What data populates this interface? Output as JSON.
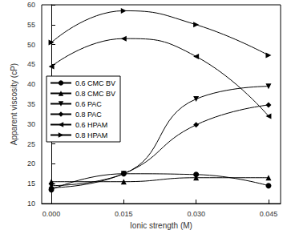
{
  "chart_data": {
    "type": "line",
    "x_label": "Ionic strength (M)",
    "y_label": "Apparent viscosity (cP)",
    "x": [
      0.0,
      0.015,
      0.03,
      0.045
    ],
    "xlim": [
      -0.002,
      0.0475
    ],
    "xticks": [
      {
        "value": 0,
        "label": "0.000"
      },
      {
        "value": 0.015,
        "label": "0.015"
      },
      {
        "value": 0.03,
        "label": "0.030"
      },
      {
        "value": 0.045,
        "label": "0.045"
      }
    ],
    "ylim": [
      10,
      60
    ],
    "yticks": [
      10,
      15,
      20,
      25,
      30,
      35,
      40,
      45,
      50,
      55,
      60
    ],
    "grid": false,
    "legend": "left",
    "series": [
      {
        "name": "0.6 CMC BV",
        "color": "#000000",
        "marker": "circle",
        "values": [
          13.5,
          17.5,
          17.3,
          14.5
        ]
      },
      {
        "name": "0.8 CMC BV",
        "color": "#000000",
        "marker": "triangle-up",
        "values": [
          15.5,
          15.5,
          16.5,
          16.5
        ]
      },
      {
        "name": "0.6 PAC",
        "color": "#000000",
        "marker": "triangle-down",
        "values": [
          14.5,
          17.5,
          36.3,
          39.5
        ]
      },
      {
        "name": "0.8 PAC",
        "color": "#000000",
        "marker": "diamond",
        "values": [
          14.0,
          17.5,
          29.8,
          34.8
        ]
      },
      {
        "name": "0.6 HPAM",
        "color": "#000000",
        "marker": "triangle-left",
        "values": [
          44.5,
          51.5,
          47.0,
          32.0
        ]
      },
      {
        "name": "0.8 HPAM",
        "color": "#000000",
        "marker": "triangle-right",
        "values": [
          50.5,
          58.5,
          55.0,
          47.3
        ]
      }
    ]
  }
}
